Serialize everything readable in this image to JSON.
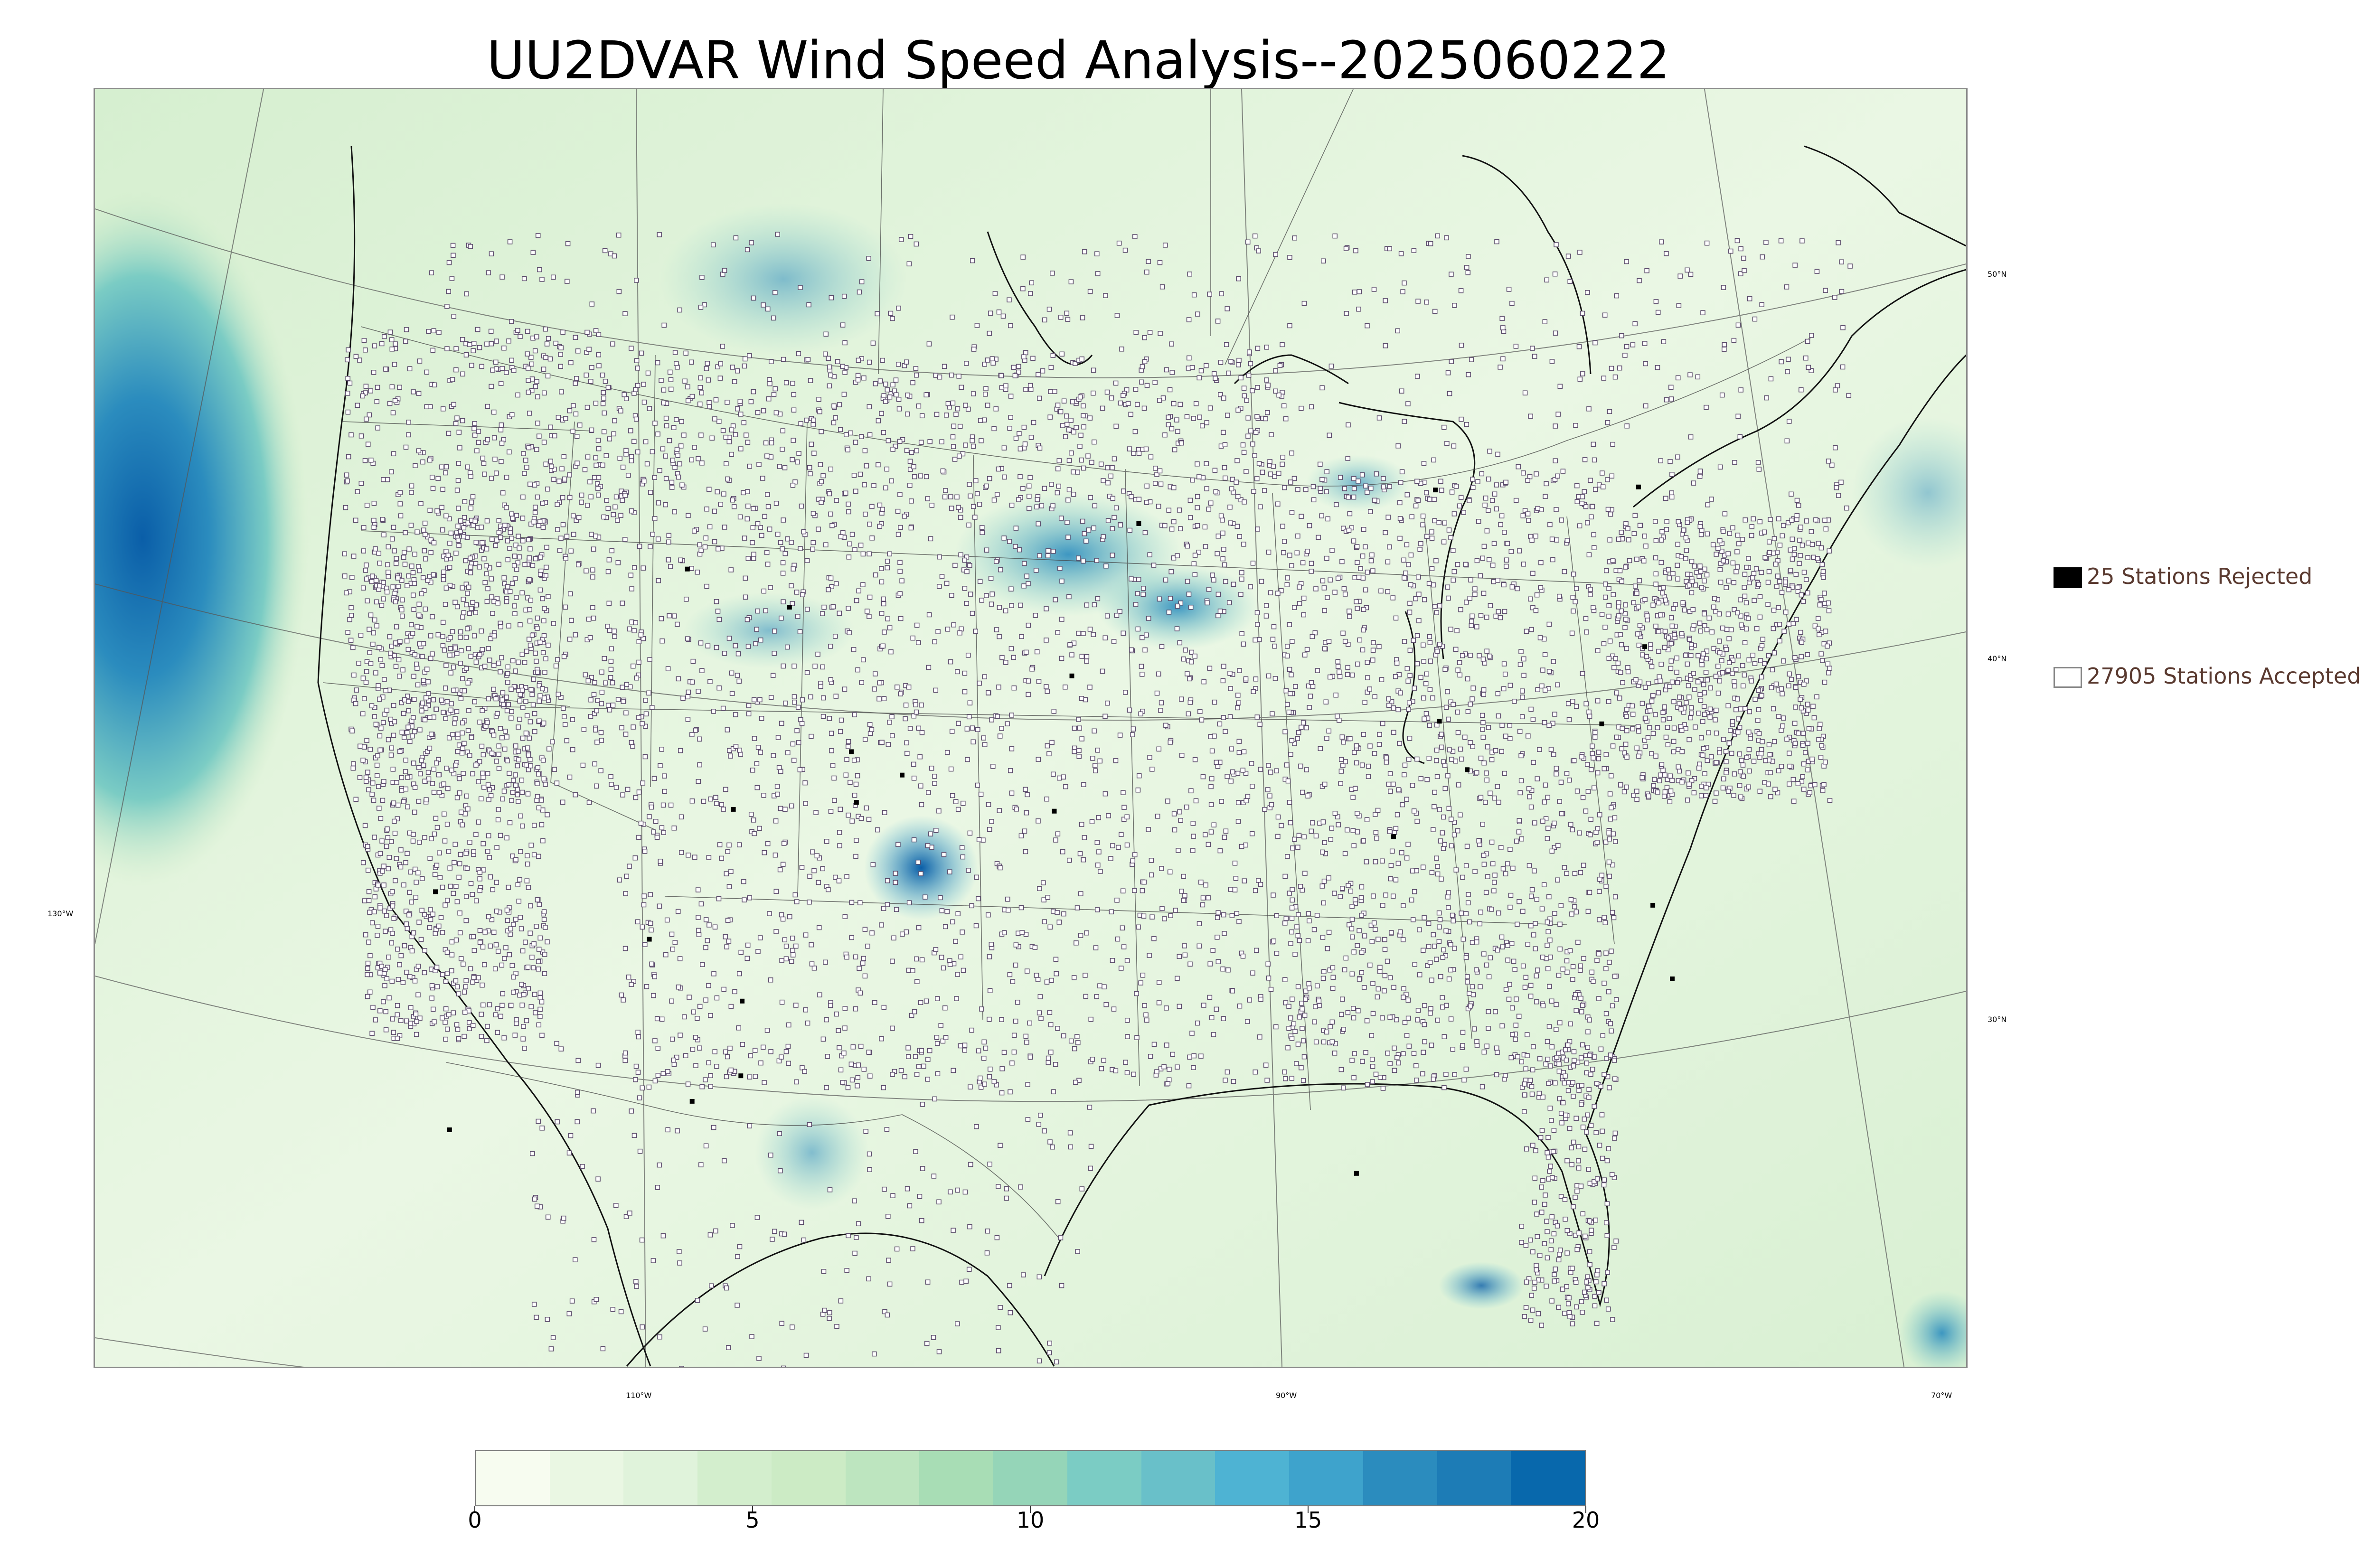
{
  "title": "UU2DVAR Wind Speed Analysis--2025060222",
  "map": {
    "lat_labels": [
      "50°N",
      "40°N",
      "30°N"
    ],
    "lon_labels": [
      "130°W",
      "110°W",
      "90°W",
      "70°W"
    ],
    "colors": {
      "land_low": "#eef8ea",
      "land_mid": "#cfeccc",
      "ocean_high": "#1f77b4",
      "ocean_max": "#0a5ea8",
      "coastline": "#111111",
      "border": "#444444",
      "station_fill": "#ffffff",
      "station_stroke": "#5a4a6a"
    }
  },
  "legend": {
    "rejected_label": "25 Stations Rejected",
    "rejected_color": "#000000",
    "accepted_label": "27905 Stations Accepted",
    "accepted_color": "#ffffff"
  },
  "colorbar": {
    "min": 0,
    "max": 20,
    "tick_labels": [
      "0",
      "5",
      "10",
      "15",
      "20"
    ],
    "tick_values": [
      0,
      5,
      10,
      15,
      20
    ],
    "colors": [
      "#f7fcf0",
      "#eaf7e3",
      "#e0f3db",
      "#d3eecd",
      "#ccebc5",
      "#bde5bf",
      "#a8ddb5",
      "#95d5b8",
      "#7bccc4",
      "#69c0c9",
      "#4eb3d3",
      "#3ea3cc",
      "#2b8cbe",
      "#1d7cb6",
      "#0868ac"
    ]
  }
}
